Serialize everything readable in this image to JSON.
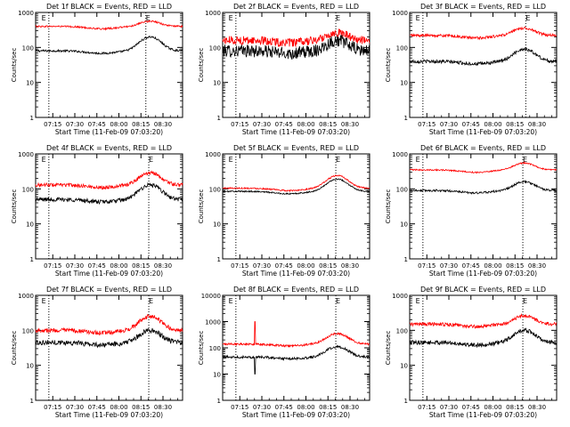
{
  "chart_data": [
    {
      "type": "line",
      "title": "Det 1f BLACK = Events, RED = LLD",
      "xlabel": "Start Time (11-Feb-09 07:03:20)",
      "ylabel": "Counts/sec",
      "ylog": true,
      "ylim": [
        1,
        1000
      ],
      "yticks": [
        "1",
        "10",
        "100",
        "1000"
      ],
      "xticks": [
        "07:15",
        "07:30",
        "07:45",
        "08:00",
        "08:15",
        "08:30"
      ],
      "x_start_min": 0,
      "x_end_min": 100,
      "markers": [
        {
          "label": "E",
          "x": 4
        },
        {
          "label": "E",
          "x": 75
        }
      ],
      "series": [
        {
          "color": "#000000",
          "base": 80,
          "peak": 200,
          "noise": 0.03
        },
        {
          "color": "#ff0000",
          "base": 400,
          "peak": 560,
          "noise": 0.025
        }
      ]
    },
    {
      "type": "line",
      "title": "Det 2f BLACK = Events, RED = LLD",
      "xlabel": "Start Time (11-Feb-09 07:03:20)",
      "ylabel": "Counts/sec",
      "ylog": true,
      "ylim": [
        1,
        1000
      ],
      "yticks": [
        "1",
        "10",
        "100",
        "1000"
      ],
      "xticks": [
        "07:15",
        "07:30",
        "07:45",
        "08:00",
        "08:15",
        "08:30"
      ],
      "x_start_min": 0,
      "x_end_min": 100,
      "markers": [
        {
          "label": "E",
          "x": 4
        },
        {
          "label": "E",
          "x": 77
        }
      ],
      "series": [
        {
          "color": "#000000",
          "base": 80,
          "peak": 160,
          "noise": 0.18
        },
        {
          "color": "#ff0000",
          "base": 160,
          "peak": 270,
          "noise": 0.12
        }
      ]
    },
    {
      "type": "line",
      "title": "Det 3f BLACK = Events, RED = LLD",
      "xlabel": "Start Time (11-Feb-09 07:03:20)",
      "ylabel": "Counts/sec",
      "ylog": true,
      "ylim": [
        1,
        1000
      ],
      "yticks": [
        "1",
        "10",
        "100",
        "1000"
      ],
      "xticks": [
        "07:15",
        "07:30",
        "07:45",
        "08:00",
        "08:15",
        "08:30"
      ],
      "x_start_min": 0,
      "x_end_min": 100,
      "markers": [
        {
          "label": "E",
          "x": 4
        },
        {
          "label": "E",
          "x": 79
        }
      ],
      "series": [
        {
          "color": "#000000",
          "base": 40,
          "peak": 90,
          "noise": 0.05
        },
        {
          "color": "#ff0000",
          "base": 220,
          "peak": 360,
          "noise": 0.04
        }
      ]
    },
    {
      "type": "line",
      "title": "Det 4f BLACK = Events, RED = LLD",
      "xlabel": "Start Time (11-Feb-09 07:03:20)",
      "ylabel": "Counts/sec",
      "ylog": true,
      "ylim": [
        1,
        1000
      ],
      "yticks": [
        "1",
        "10",
        "100",
        "1000"
      ],
      "xticks": [
        "07:15",
        "07:30",
        "07:45",
        "08:00",
        "08:15",
        "08:30"
      ],
      "x_start_min": 0,
      "x_end_min": 100,
      "markers": [
        {
          "label": "E",
          "x": 4
        },
        {
          "label": "E",
          "x": 77
        }
      ],
      "series": [
        {
          "color": "#000000",
          "base": 50,
          "peak": 130,
          "noise": 0.06
        },
        {
          "color": "#ff0000",
          "base": 130,
          "peak": 290,
          "noise": 0.05
        }
      ]
    },
    {
      "type": "line",
      "title": "Det 5f BLACK = Events, RED = LLD",
      "xlabel": "Start Time (11-Feb-09 07:03:20)",
      "ylabel": "Counts/sec",
      "ylog": true,
      "ylim": [
        1,
        1000
      ],
      "yticks": [
        "1",
        "10",
        "100",
        "1000"
      ],
      "xticks": [
        "07:15",
        "07:30",
        "07:45",
        "08:00",
        "08:15",
        "08:30"
      ],
      "x_start_min": 0,
      "x_end_min": 100,
      "markers": [
        {
          "label": "E",
          "x": 4
        },
        {
          "label": "E",
          "x": 77
        }
      ],
      "series": [
        {
          "color": "#000000",
          "base": 85,
          "peak": 190,
          "noise": 0.02
        },
        {
          "color": "#ff0000",
          "base": 105,
          "peak": 240,
          "noise": 0.02
        }
      ]
    },
    {
      "type": "line",
      "title": "Det 6f BLACK = Events, RED = LLD",
      "xlabel": "Start Time (11-Feb-09 07:03:20)",
      "ylabel": "Counts/sec",
      "ylog": true,
      "ylim": [
        1,
        1000
      ],
      "yticks": [
        "1",
        "10",
        "100",
        "1000"
      ],
      "xticks": [
        "07:15",
        "07:30",
        "07:45",
        "08:00",
        "08:15",
        "08:30"
      ],
      "x_start_min": 0,
      "x_end_min": 100,
      "markers": [
        {
          "label": "E",
          "x": 4
        },
        {
          "label": "E",
          "x": 77
        }
      ],
      "series": [
        {
          "color": "#000000",
          "base": 90,
          "peak": 160,
          "noise": 0.03
        },
        {
          "color": "#ff0000",
          "base": 350,
          "peak": 550,
          "noise": 0.02
        }
      ]
    },
    {
      "type": "line",
      "title": "Det 7f BLACK = Events, RED = LLD",
      "xlabel": "Start Time (11-Feb-09 07:03:20)",
      "ylabel": "Counts/sec",
      "ylog": true,
      "ylim": [
        1,
        1000
      ],
      "yticks": [
        "1",
        "10",
        "100",
        "1000"
      ],
      "xticks": [
        "07:15",
        "07:30",
        "07:45",
        "08:00",
        "08:15",
        "08:30"
      ],
      "x_start_min": 0,
      "x_end_min": 100,
      "markers": [
        {
          "label": "E",
          "x": 4
        },
        {
          "label": "E",
          "x": 77
        }
      ],
      "series": [
        {
          "color": "#000000",
          "base": 45,
          "peak": 100,
          "noise": 0.07
        },
        {
          "color": "#ff0000",
          "base": 100,
          "peak": 250,
          "noise": 0.06
        }
      ]
    },
    {
      "type": "line",
      "title": "Det 8f BLACK = Events, RED = LLD",
      "xlabel": "Start Time (11-Feb-09 07:03:20)",
      "ylabel": "Counts/sec",
      "ylog": true,
      "ylim": [
        1,
        10000
      ],
      "yticks": [
        "1",
        "10",
        "100",
        "1000",
        "10000"
      ],
      "xticks": [
        "07:15",
        "07:30",
        "07:45",
        "08:00",
        "08:15",
        "08:30"
      ],
      "x_start_min": 0,
      "x_end_min": 100,
      "markers": [
        {
          "label": "E",
          "x": 4
        },
        {
          "label": "E",
          "x": 77
        }
      ],
      "spike_x": 22,
      "series": [
        {
          "color": "#000000",
          "base": 45,
          "peak": 110,
          "noise": 0.05
        },
        {
          "color": "#ff0000",
          "base": 140,
          "peak": 350,
          "noise": 0.04
        }
      ]
    },
    {
      "type": "line",
      "title": "Det 9f BLACK = Events, RED = LLD",
      "xlabel": "Start Time (11-Feb-09 07:03:20)",
      "ylabel": "Counts/sec",
      "ylog": true,
      "ylim": [
        1,
        1000
      ],
      "yticks": [
        "1",
        "10",
        "100",
        "1000"
      ],
      "xticks": [
        "07:15",
        "07:30",
        "07:45",
        "08:00",
        "08:15",
        "08:30"
      ],
      "x_start_min": 0,
      "x_end_min": 100,
      "markers": [
        {
          "label": "E",
          "x": 4
        },
        {
          "label": "E",
          "x": 77
        }
      ],
      "series": [
        {
          "color": "#000000",
          "base": 45,
          "peak": 100,
          "noise": 0.06
        },
        {
          "color": "#ff0000",
          "base": 150,
          "peak": 260,
          "noise": 0.05
        }
      ]
    }
  ]
}
